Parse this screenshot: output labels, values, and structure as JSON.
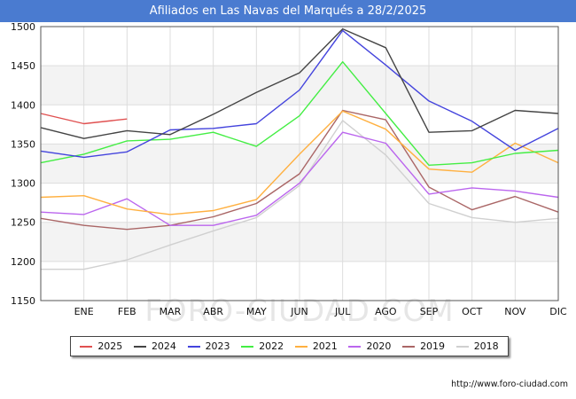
{
  "title": "Afiliados en Las Navas del Marqués a 28/2/2025",
  "footer_url": "http://www.foro-ciudad.com",
  "watermark": "FORO-CIUDAD.COM",
  "chart_data": {
    "type": "line",
    "title": "Afiliados en Las Navas del Marqués a 28/2/2025",
    "xlabel": "",
    "ylabel": "",
    "ylim": [
      1150,
      1500
    ],
    "yticks": [
      1150,
      1200,
      1250,
      1300,
      1350,
      1400,
      1450,
      1500
    ],
    "categories": [
      "",
      "ENE",
      "FEB",
      "MAR",
      "ABR",
      "MAY",
      "JUN",
      "JUL",
      "AGO",
      "SEP",
      "OCT",
      "NOV",
      "DIC"
    ],
    "grid": true,
    "legend_position": "bottom",
    "series": [
      {
        "name": "2025",
        "color": "#e05050",
        "values": [
          1389,
          1376,
          1382,
          null,
          null,
          null,
          null,
          null,
          null,
          null,
          null,
          null,
          null
        ]
      },
      {
        "name": "2024",
        "color": "#444444",
        "values": [
          1371,
          1357,
          1367,
          1362,
          1388,
          1416,
          1441,
          1497,
          1473,
          1365,
          1367,
          1393,
          1389
        ]
      },
      {
        "name": "2023",
        "color": "#4444dd",
        "values": [
          1341,
          1333,
          1340,
          1368,
          1370,
          1376,
          1419,
          1495,
          1451,
          1405,
          1379,
          1342,
          1370
        ]
      },
      {
        "name": "2022",
        "color": "#44ee44",
        "values": [
          1326,
          1337,
          1354,
          1356,
          1365,
          1347,
          1386,
          1455,
          1389,
          1323,
          1326,
          1338,
          1342
        ]
      },
      {
        "name": "2021",
        "color": "#ffb040",
        "values": [
          1282,
          1284,
          1267,
          1260,
          1265,
          1279,
          1337,
          1392,
          1369,
          1318,
          1314,
          1351,
          1326
        ]
      },
      {
        "name": "2020",
        "color": "#bb66ee",
        "values": [
          1263,
          1260,
          1280,
          1246,
          1246,
          1259,
          1300,
          1365,
          1351,
          1286,
          1294,
          1290,
          1282
        ]
      },
      {
        "name": "2019",
        "color": "#aa6666",
        "values": [
          1255,
          1246,
          1241,
          1246,
          1257,
          1274,
          1312,
          1393,
          1381,
          1295,
          1266,
          1283,
          1263
        ]
      },
      {
        "name": "2018",
        "color": "#d0d0d0",
        "values": [
          1190,
          1190,
          1202,
          1221,
          1239,
          1256,
          1297,
          1380,
          1336,
          1274,
          1256,
          1250,
          1255
        ]
      }
    ]
  }
}
